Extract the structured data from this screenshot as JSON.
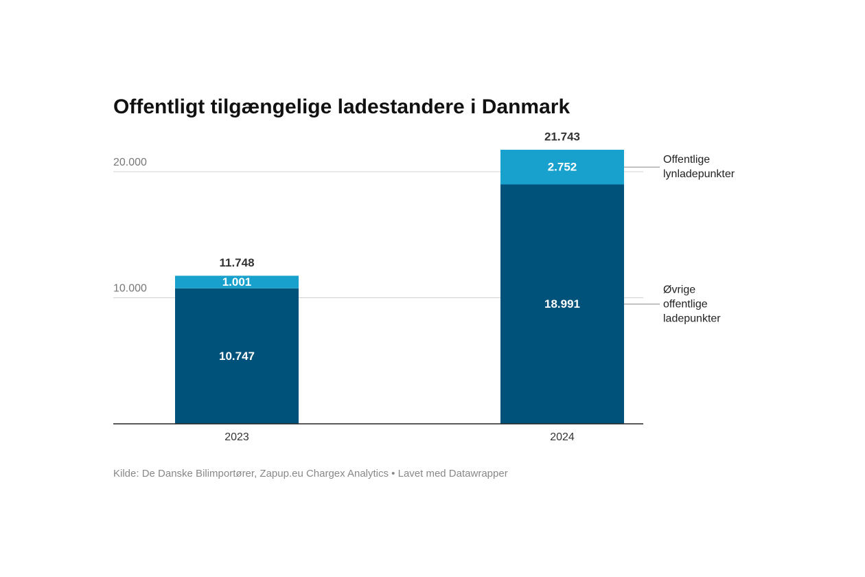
{
  "chart_data": {
    "type": "stacked-bar",
    "title": "Offentligt tilgængelige ladestandere i Danmark",
    "source": "Kilde: De Danske Bilimportører, Zapup.eu Chargex Analytics • Lavet med Datawrapper",
    "categories": [
      "2023",
      "2024"
    ],
    "series": [
      {
        "name": "Øvrige offentlige ladepunkter",
        "color": "#01527a",
        "values": [
          10747,
          18991
        ],
        "value_labels": [
          "10.747",
          "18.991"
        ]
      },
      {
        "name": "Offentlige lynladepunkter",
        "color": "#18a1cd",
        "values": [
          1001,
          2752
        ],
        "value_labels": [
          "1.001",
          "2.752"
        ]
      }
    ],
    "totals": {
      "values": [
        11748,
        21743
      ],
      "value_labels": [
        "11.748",
        "21.743"
      ]
    },
    "ylim": [
      0,
      22000
    ],
    "yticks": [
      {
        "value": 10000,
        "label": "10.000"
      },
      {
        "value": 20000,
        "label": "20.000"
      }
    ],
    "grid": true
  }
}
